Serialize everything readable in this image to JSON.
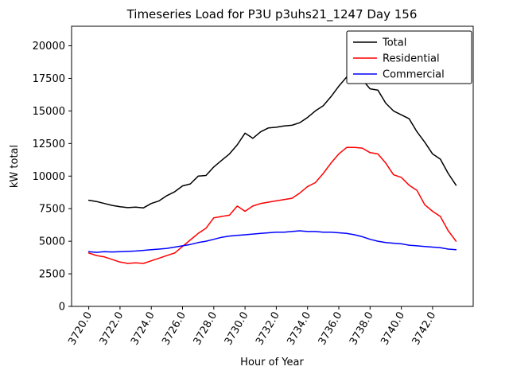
{
  "chart_data": {
    "type": "line",
    "title": "Timeseries Load for P3U p3uhs21_1247  Day 156",
    "xlabel": "Hour of Year",
    "ylabel": "kW total",
    "xlim": [
      3718.9,
      3744.6
    ],
    "ylim": [
      0,
      21500
    ],
    "grid": false,
    "legend_position": "upper right",
    "xticks": [
      3720,
      3722,
      3724,
      3726,
      3728,
      3730,
      3732,
      3734,
      3736,
      3738,
      3740,
      3742
    ],
    "xtick_labels": [
      "3720.0",
      "3722.0",
      "3724.0",
      "3726.0",
      "3728.0",
      "3730.0",
      "3732.0",
      "3734.0",
      "3736.0",
      "3738.0",
      "3740.0",
      "3742.0"
    ],
    "yticks": [
      0,
      2500,
      5000,
      7500,
      10000,
      12500,
      15000,
      17500,
      20000
    ],
    "ytick_labels": [
      "0",
      "2500",
      "5000",
      "7500",
      "10000",
      "12500",
      "15000",
      "17500",
      "20000"
    ],
    "x": [
      3720.0,
      3720.5,
      3721.0,
      3721.5,
      3722.0,
      3722.5,
      3723.0,
      3723.5,
      3724.0,
      3724.5,
      3725.0,
      3725.5,
      3726.0,
      3726.5,
      3727.0,
      3727.5,
      3728.0,
      3728.5,
      3729.0,
      3729.5,
      3730.0,
      3730.5,
      3731.0,
      3731.5,
      3732.0,
      3732.5,
      3733.0,
      3733.5,
      3734.0,
      3734.5,
      3735.0,
      3735.5,
      3736.0,
      3736.5,
      3737.0,
      3737.5,
      3738.0,
      3738.5,
      3739.0,
      3739.5,
      3740.0,
      3740.5,
      3741.0,
      3741.5,
      3742.0,
      3742.5,
      3743.0,
      3743.5
    ],
    "series": [
      {
        "name": "Total",
        "color": "#000000",
        "values": [
          8150,
          8050,
          7900,
          7750,
          7650,
          7580,
          7620,
          7560,
          7900,
          8100,
          8500,
          8800,
          9250,
          9400,
          10000,
          10050,
          10700,
          11200,
          11700,
          12400,
          13300,
          12900,
          13400,
          13700,
          13750,
          13850,
          13900,
          14100,
          14500,
          15000,
          15400,
          16100,
          16900,
          17600,
          17700,
          17400,
          16700,
          16600,
          15600,
          15000,
          14700,
          14400,
          13400,
          12600,
          11700,
          11300,
          10200,
          9300
        ]
      },
      {
        "name": "Residential",
        "color": "#ff0000",
        "values": [
          4100,
          3900,
          3800,
          3600,
          3400,
          3300,
          3350,
          3300,
          3500,
          3700,
          3900,
          4100,
          4600,
          5100,
          5600,
          6000,
          6800,
          6900,
          7000,
          7700,
          7300,
          7700,
          7900,
          8000,
          8100,
          8200,
          8300,
          8700,
          9200,
          9500,
          10200,
          11000,
          11700,
          12200,
          12200,
          12150,
          11800,
          11700,
          11000,
          10100,
          9900,
          9300,
          8900,
          7800,
          7300,
          6900,
          5800,
          5000
        ]
      },
      {
        "name": "Commercial",
        "color": "#0000ff",
        "values": [
          4200,
          4150,
          4200,
          4180,
          4200,
          4220,
          4250,
          4300,
          4350,
          4400,
          4450,
          4550,
          4650,
          4750,
          4900,
          5000,
          5150,
          5300,
          5400,
          5450,
          5500,
          5550,
          5600,
          5650,
          5700,
          5700,
          5750,
          5800,
          5750,
          5750,
          5700,
          5700,
          5650,
          5600,
          5500,
          5350,
          5150,
          5000,
          4900,
          4850,
          4800,
          4700,
          4650,
          4600,
          4550,
          4500,
          4400,
          4350
        ]
      }
    ]
  }
}
